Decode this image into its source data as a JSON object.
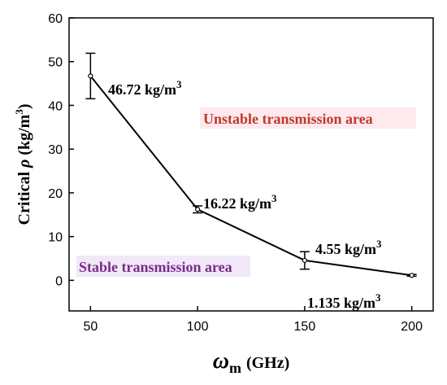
{
  "chart_data": {
    "type": "line",
    "x": [
      50,
      100,
      150,
      200
    ],
    "y": [
      46.72,
      16.22,
      4.55,
      1.135
    ],
    "error": [
      5.2,
      0.8,
      2.0,
      0.2
    ],
    "xlim": [
      40,
      210
    ],
    "ylim": [
      -7,
      60
    ],
    "xticks": [
      50,
      100,
      150,
      200
    ],
    "yticks": [
      0,
      10,
      20,
      30,
      40,
      50,
      60
    ],
    "xlabel": {
      "symbol": "ω",
      "sub": "m",
      "unit": "(GHz)"
    },
    "ylabel": {
      "prefix": "Critical ",
      "symbol": "ρ",
      "unit": " (kg/m",
      "sup": "3",
      "close": ")"
    },
    "point_labels": [
      {
        "value": "46.72 kg/m",
        "sup": "3"
      },
      {
        "value": "16.22 kg/m",
        "sup": "3"
      },
      {
        "value": "4.55 kg/m",
        "sup": "3"
      },
      {
        "value": "1.135 kg/m",
        "sup": "3"
      }
    ],
    "regions": [
      {
        "text": "Unstable transmission area",
        "color": "#c0392b",
        "highlight": "#fde9ee"
      },
      {
        "text": "Stable transmission area",
        "color": "#7b2a8c",
        "highlight": "#f1e9f7"
      }
    ],
    "grid": false,
    "line_color": "#000000"
  }
}
